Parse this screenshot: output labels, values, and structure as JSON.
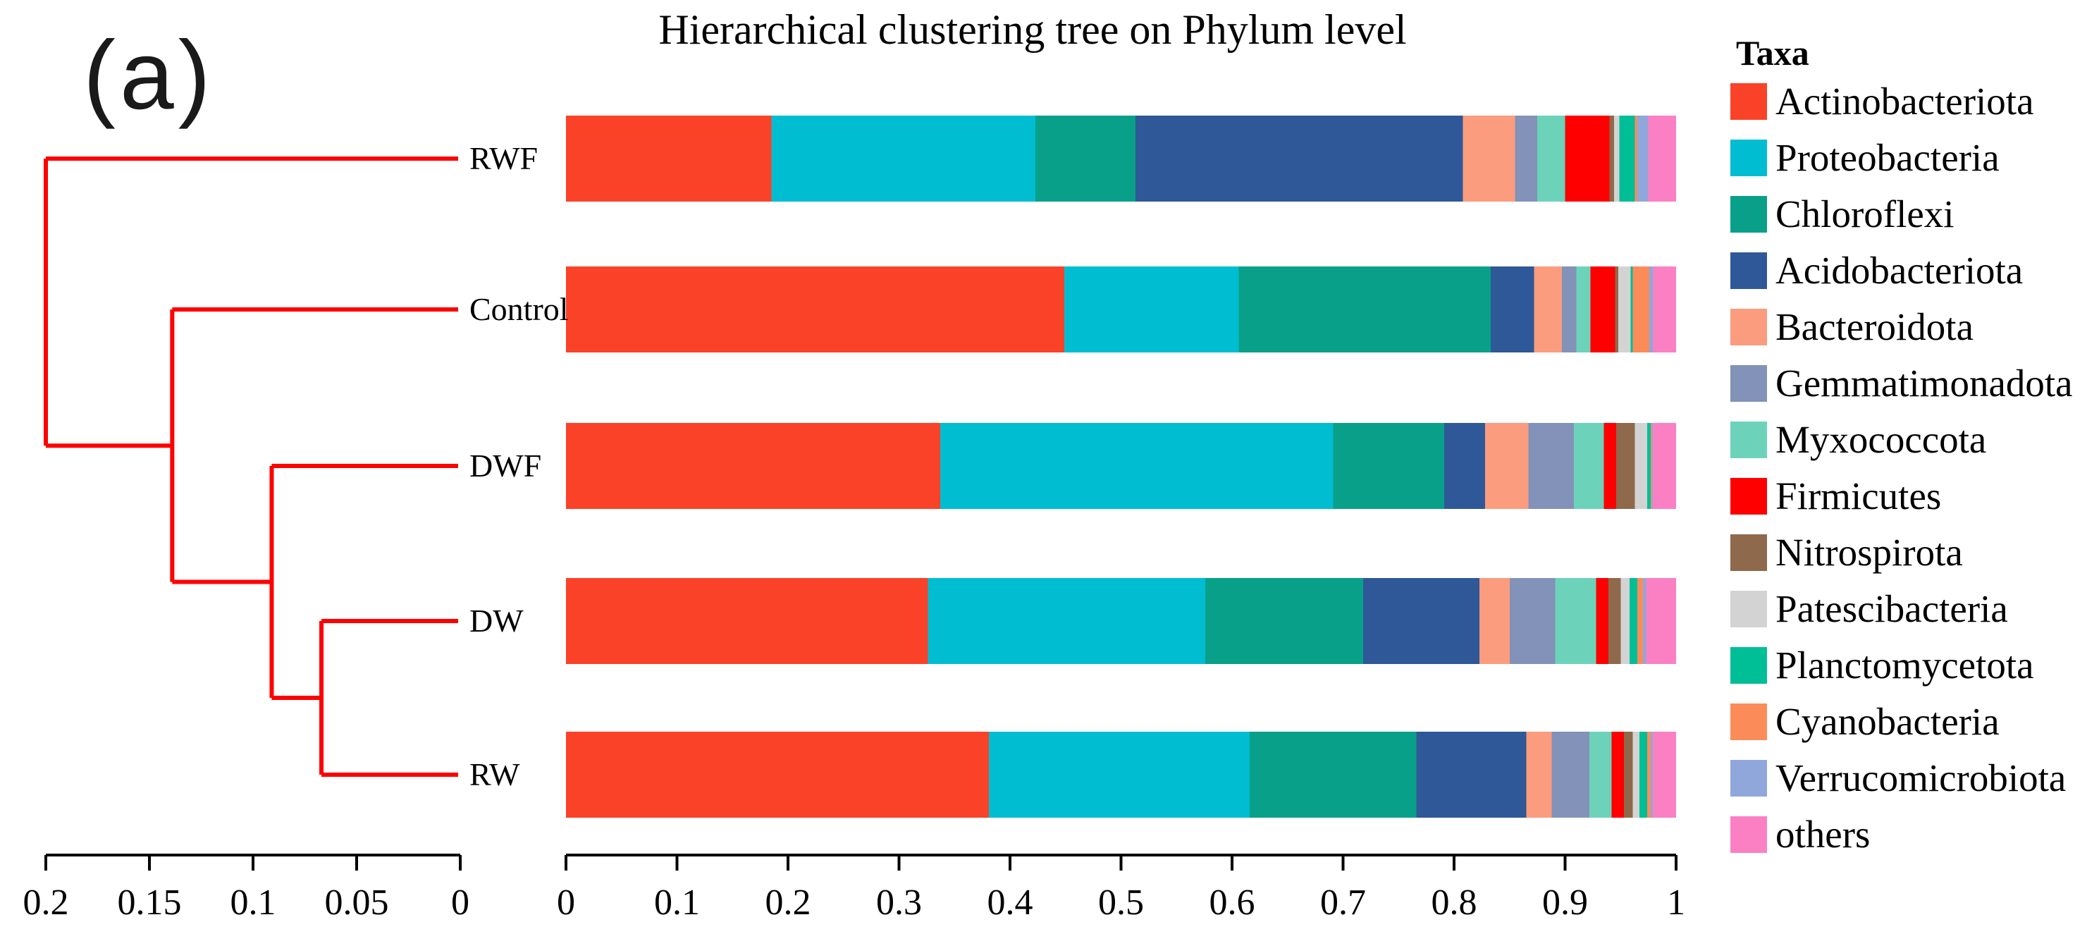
{
  "panel_label": "(a)",
  "title": "Hierarchical clustering tree on Phylum level",
  "legend": {
    "title": "Taxa"
  },
  "dendrogram_color": "#FF0000",
  "axis_color": "#000000",
  "taxa": [
    {
      "name": "Actinobacteriota",
      "color": "#FA4228"
    },
    {
      "name": "Proteobacteria",
      "color": "#00BDD2"
    },
    {
      "name": "Chloroflexi",
      "color": "#09A089"
    },
    {
      "name": "Acidobacteriota",
      "color": "#2E5897"
    },
    {
      "name": "Bacteroidota",
      "color": "#FB9C7E"
    },
    {
      "name": "Gemmatimonadota",
      "color": "#8292B8"
    },
    {
      "name": "Myxococcota",
      "color": "#6CD3BA"
    },
    {
      "name": "Firmicutes",
      "color": "#FE0000"
    },
    {
      "name": "Nitrospirota",
      "color": "#8F694B"
    },
    {
      "name": "Patescibacteria",
      "color": "#D3D3D3"
    },
    {
      "name": "Planctomycetota",
      "color": "#00BE96"
    },
    {
      "name": "Cyanobacteria",
      "color": "#FB8C5A"
    },
    {
      "name": "Verrucomicrobiota",
      "color": "#8FA7DB"
    },
    {
      "name": "others",
      "color": "#FB80C3"
    }
  ],
  "chart_data": [
    {
      "type": "dendrogram",
      "orientation": "horizontal",
      "line_color": "#FF0000",
      "leaves": [
        "RWF",
        "Control",
        "DWF",
        "DW",
        "RW"
      ],
      "merges": [
        {
          "join": [
            "DW",
            "RW"
          ],
          "height": 0.067
        },
        {
          "join": [
            "DWF",
            "DW+RW"
          ],
          "height": 0.091
        },
        {
          "join": [
            "Control",
            "DWF+DW+RW"
          ],
          "height": 0.139
        },
        {
          "join": [
            "RWF",
            "Control+DWF+DW+RW"
          ],
          "height": 0.2
        }
      ],
      "tree": {
        "height": 0.2,
        "children": [
          {
            "leaf": "RWF"
          },
          {
            "height": 0.139,
            "children": [
              {
                "leaf": "Control"
              },
              {
                "height": 0.091,
                "children": [
                  {
                    "leaf": "DWF"
                  },
                  {
                    "height": 0.067,
                    "children": [
                      {
                        "leaf": "DW"
                      },
                      {
                        "leaf": "RW"
                      }
                    ]
                  }
                ]
              }
            ]
          }
        ]
      },
      "axis": {
        "min": 0,
        "max": 0.2,
        "tick_values": [
          0.2,
          0.15,
          0.1,
          0.05,
          0
        ],
        "tick_labels": [
          "0.2",
          "0.15",
          "0.1",
          "0.05",
          "0"
        ]
      }
    },
    {
      "type": "bar",
      "stacked": true,
      "orientation": "horizontal",
      "title": "Hierarchical clustering tree on Phylum level",
      "categories": [
        "RWF",
        "Control",
        "DWF",
        "DW",
        "RW"
      ],
      "x_axis": {
        "min": 0,
        "max": 1,
        "tick_values": [
          0,
          0.1,
          0.2,
          0.3,
          0.4,
          0.5,
          0.6,
          0.7,
          0.8,
          0.9,
          1
        ],
        "tick_labels": [
          "0",
          "0.1",
          "0.2",
          "0.3",
          "0.4",
          "0.5",
          "0.6",
          "0.7",
          "0.8",
          "0.9",
          "1"
        ]
      },
      "series": [
        {
          "name": "Actinobacteriota",
          "values": [
            0.185,
            0.449,
            0.337,
            0.326,
            0.381
          ]
        },
        {
          "name": "Proteobacteria",
          "values": [
            0.238,
            0.157,
            0.354,
            0.25,
            0.235
          ]
        },
        {
          "name": "Chloroflexi",
          "values": [
            0.09,
            0.227,
            0.1,
            0.142,
            0.15
          ]
        },
        {
          "name": "Acidobacteriota",
          "values": [
            0.295,
            0.039,
            0.037,
            0.105,
            0.099
          ]
        },
        {
          "name": "Bacteroidota",
          "values": [
            0.047,
            0.025,
            0.039,
            0.027,
            0.023
          ]
        },
        {
          "name": "Gemmatimonadota",
          "values": [
            0.02,
            0.013,
            0.041,
            0.041,
            0.034
          ]
        },
        {
          "name": "Myxococcota",
          "values": [
            0.025,
            0.013,
            0.027,
            0.037,
            0.02
          ]
        },
        {
          "name": "Firmicutes",
          "values": [
            0.04,
            0.022,
            0.011,
            0.011,
            0.011
          ]
        },
        {
          "name": "Nitrospirota",
          "values": [
            0.004,
            0.003,
            0.017,
            0.011,
            0.008
          ]
        },
        {
          "name": "Patescibacteria",
          "values": [
            0.005,
            0.011,
            0.011,
            0.008,
            0.006
          ]
        },
        {
          "name": "Planctomycetota",
          "values": [
            0.014,
            0.002,
            0.003,
            0.007,
            0.007
          ]
        },
        {
          "name": "Cyanobacteria",
          "values": [
            0.002,
            0.015,
            0.001,
            0.005,
            0.003
          ]
        },
        {
          "name": "Verrucomicrobiota",
          "values": [
            0.01,
            0.003,
            0.001,
            0.003,
            0.002
          ]
        },
        {
          "name": "others",
          "values": [
            0.025,
            0.021,
            0.021,
            0.027,
            0.021
          ]
        }
      ]
    }
  ]
}
